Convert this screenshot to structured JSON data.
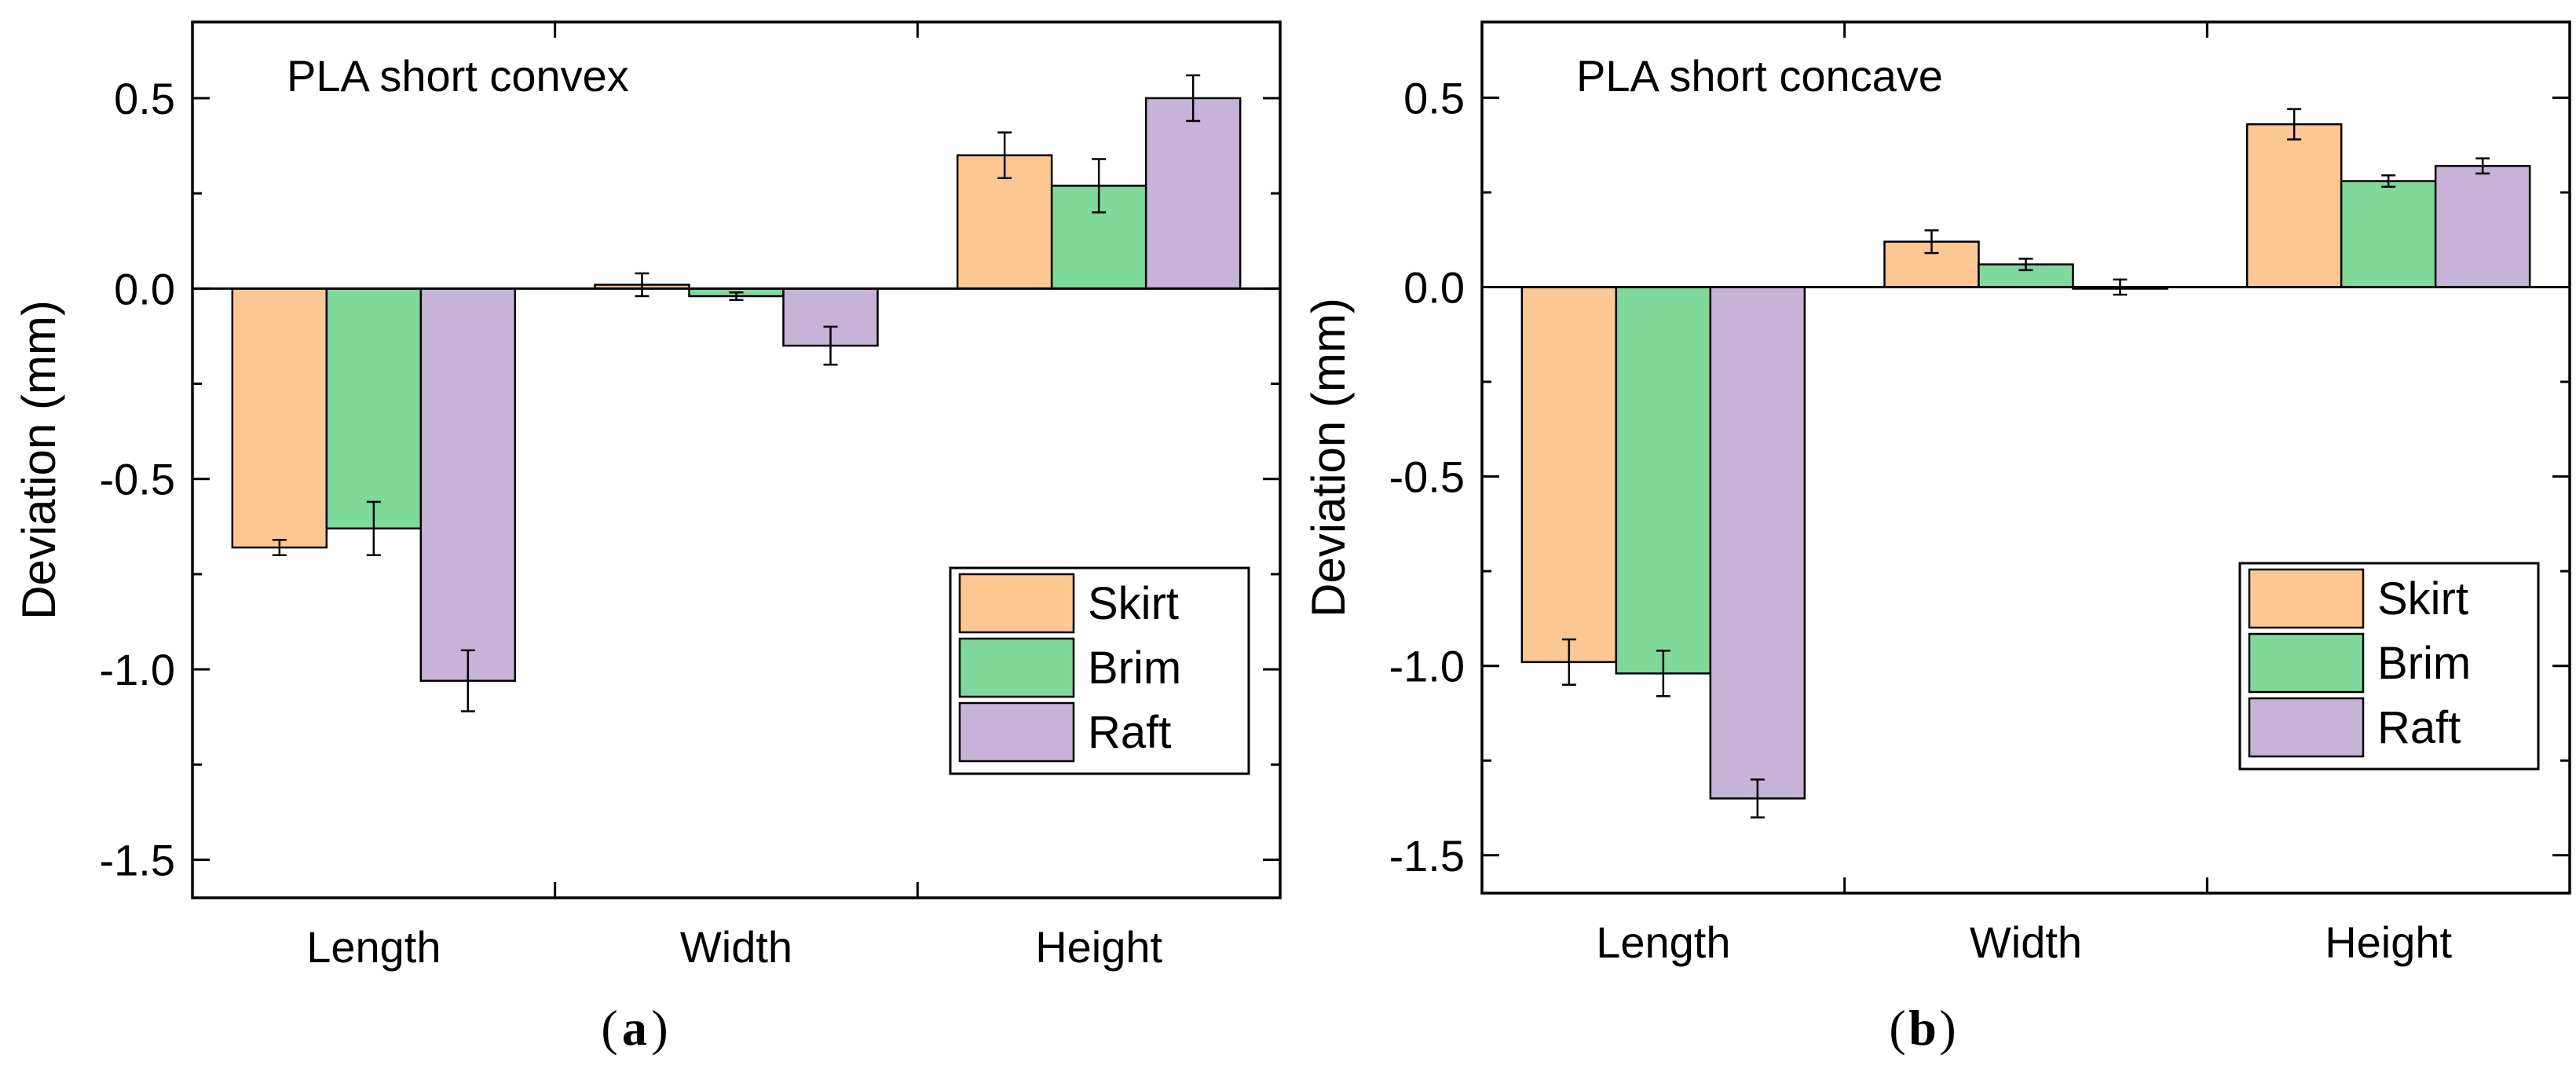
{
  "colors": {
    "Skirt": "#FDC794",
    "Brim": "#7FD99A",
    "Raft": "#C8B3D8",
    "axis": "#000000"
  },
  "chart_data": [
    {
      "id": "a",
      "type": "bar",
      "title": "PLA short convex",
      "caption_letter": "a",
      "ylabel": "Deviation (mm)",
      "xlabel": "",
      "ylim": [
        -1.6,
        0.7
      ],
      "yticks": [
        0.5,
        0.0,
        -0.5,
        -1.0,
        -1.5
      ],
      "ytick_labels": [
        "0.5",
        "0.0",
        "-0.5",
        "-1.0",
        "-1.5"
      ],
      "categories": [
        "Length",
        "Width",
        "Height"
      ],
      "series": [
        {
          "name": "Skirt",
          "values": [
            -0.68,
            0.01,
            0.35
          ],
          "errors": [
            0.02,
            0.03,
            0.06
          ]
        },
        {
          "name": "Brim",
          "values": [
            -0.63,
            -0.02,
            0.27
          ],
          "errors": [
            0.07,
            0.01,
            0.07
          ]
        },
        {
          "name": "Raft",
          "values": [
            -1.03,
            -0.15,
            0.5
          ],
          "errors": [
            0.08,
            0.05,
            0.06
          ]
        }
      ],
      "legend": {
        "position": "bottom-right",
        "entries": [
          "Skirt",
          "Brim",
          "Raft"
        ]
      }
    },
    {
      "id": "b",
      "type": "bar",
      "title": "PLA short concave",
      "caption_letter": "b",
      "ylabel": "Deviation (mm)",
      "xlabel": "",
      "ylim": [
        -1.6,
        0.7
      ],
      "yticks": [
        0.5,
        0.0,
        -0.5,
        -1.0,
        -1.5
      ],
      "ytick_labels": [
        "0.5",
        "0.0",
        "-0.5",
        "-1.0",
        "-1.5"
      ],
      "categories": [
        "Length",
        "Width",
        "Height"
      ],
      "series": [
        {
          "name": "Skirt",
          "values": [
            -0.99,
            0.12,
            0.43
          ],
          "errors": [
            0.06,
            0.03,
            0.04
          ]
        },
        {
          "name": "Brim",
          "values": [
            -1.02,
            0.06,
            0.28
          ],
          "errors": [
            0.06,
            0.015,
            0.015
          ]
        },
        {
          "name": "Raft",
          "values": [
            -1.35,
            0.0,
            0.32
          ],
          "errors": [
            0.05,
            0.02,
            0.02
          ]
        }
      ],
      "legend": {
        "position": "bottom-right",
        "entries": [
          "Skirt",
          "Brim",
          "Raft"
        ]
      }
    }
  ]
}
